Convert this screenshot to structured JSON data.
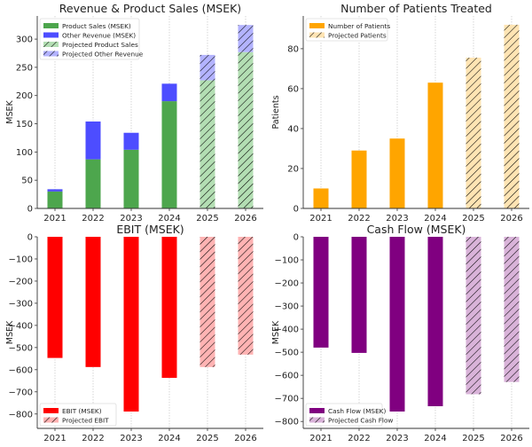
{
  "chart_data": [
    {
      "type": "bar",
      "stacked": true,
      "title": "Revenue & Product Sales (MSEK)",
      "xlabel": "",
      "ylabel": "MSEK",
      "categories": [
        "2021",
        "2022",
        "2023",
        "2024",
        "2025",
        "2026"
      ],
      "ylim": [
        0,
        341
      ],
      "yticks": [
        0,
        50,
        100,
        150,
        200,
        250,
        300
      ],
      "ytick_labels": [
        "0",
        "50",
        "100",
        "150",
        "200",
        "250",
        "300"
      ],
      "legend_position": "top-left",
      "grid": "vertical dotted",
      "series": [
        {
          "name": "Product Sales (MSEK)",
          "color": "#4da64d",
          "hatch": false,
          "values": [
            30,
            87,
            104,
            190,
            null,
            null
          ]
        },
        {
          "name": "Other Revenue (MSEK)",
          "color": "#4d4dff",
          "hatch": false,
          "values": [
            4,
            67,
            30,
            31,
            null,
            null
          ]
        },
        {
          "name": "Projected Product Sales",
          "color": "#b3deb3",
          "hatch": true,
          "values": [
            null,
            null,
            null,
            null,
            227,
            277
          ]
        },
        {
          "name": "Projected Other Revenue",
          "color": "#b3b3ff",
          "hatch": true,
          "values": [
            null,
            null,
            null,
            null,
            45,
            48
          ]
        }
      ]
    },
    {
      "type": "bar",
      "title": "Number of Patients Treated",
      "xlabel": "",
      "ylabel": "Patients",
      "categories": [
        "2021",
        "2022",
        "2023",
        "2024",
        "2025",
        "2026"
      ],
      "ylim": [
        0,
        96.4
      ],
      "yticks": [
        0,
        20,
        40,
        60,
        80
      ],
      "ytick_labels": [
        "0",
        "20",
        "40",
        "60",
        "80"
      ],
      "legend_position": "top-left",
      "grid": "vertical dotted",
      "series": [
        {
          "name": "Number of Patients",
          "color": "#ffa500",
          "hatch": false,
          "values": [
            10,
            29,
            35,
            63,
            null,
            null
          ]
        },
        {
          "name": "Projected Patients",
          "color": "#ffe4b3",
          "hatch": true,
          "values": [
            null,
            null,
            null,
            null,
            75.5,
            92
          ]
        }
      ]
    },
    {
      "type": "bar",
      "title": "EBIT (MSEK)",
      "xlabel": "",
      "ylabel": "MSEK",
      "categories": [
        "2021",
        "2022",
        "2023",
        "2024",
        "2025",
        "2026"
      ],
      "ylim": [
        -865,
        0
      ],
      "yticks": [
        0,
        -100,
        -200,
        -300,
        -400,
        -500,
        -600,
        -700,
        -800
      ],
      "ytick_labels": [
        "0",
        "−100",
        "−200",
        "−300",
        "−400",
        "−500",
        "−600",
        "−700",
        "−800"
      ],
      "legend_position": "bottom-left",
      "grid": "vertical dotted",
      "series": [
        {
          "name": "EBIT (MSEK)",
          "color": "#ff0000",
          "hatch": false,
          "values": [
            -547,
            -588,
            -789,
            -637,
            null,
            null
          ]
        },
        {
          "name": "Projected EBIT",
          "color": "#ffb3b3",
          "hatch": true,
          "values": [
            null,
            null,
            null,
            null,
            -588,
            -532
          ]
        }
      ]
    },
    {
      "type": "bar",
      "title": "Cash Flow (MSEK)",
      "xlabel": "",
      "ylabel": "MSEK",
      "categories": [
        "2021",
        "2022",
        "2023",
        "2024",
        "2025",
        "2026"
      ],
      "ylim": [
        -830,
        0
      ],
      "yticks": [
        0,
        -100,
        -200,
        -300,
        -400,
        -500,
        -600,
        -700,
        -800
      ],
      "ytick_labels": [
        "0",
        "−100",
        "−200",
        "−300",
        "−400",
        "−500",
        "−600",
        "−700",
        "−800"
      ],
      "legend_position": "bottom-left",
      "grid": "vertical dotted",
      "series": [
        {
          "name": "Cash Flow (MSEK)",
          "color": "#800080",
          "hatch": false,
          "values": [
            -480,
            -503,
            -757,
            -734,
            null,
            null
          ]
        },
        {
          "name": "Projected Cash Flow",
          "color": "#d9b3d9",
          "hatch": true,
          "values": [
            null,
            null,
            null,
            null,
            -682,
            -629
          ]
        }
      ]
    }
  ]
}
